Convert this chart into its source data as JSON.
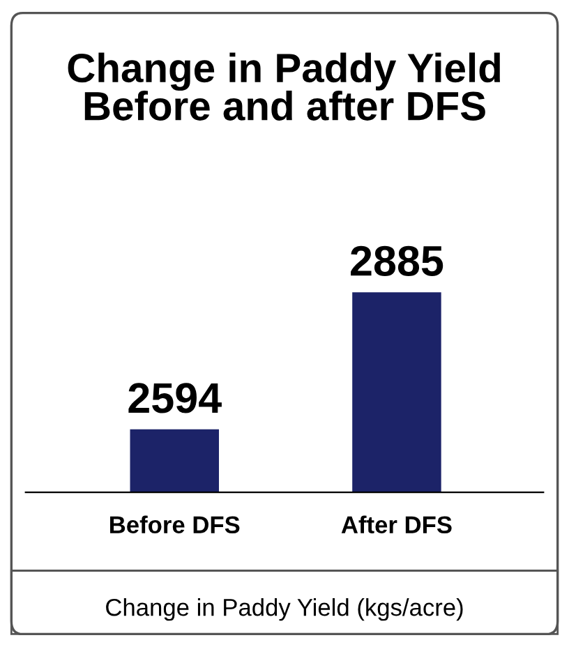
{
  "chart_data": {
    "type": "bar",
    "title": "Change in Paddy Yield\nBefore and after DFS",
    "xlabel": "Change in Paddy Yield (kgs/acre)",
    "categories": [
      "Before DFS",
      "After DFS"
    ],
    "values": [
      2594,
      2885
    ],
    "color": "#1c2368",
    "data_labels": true,
    "grid": false,
    "legend": false
  }
}
